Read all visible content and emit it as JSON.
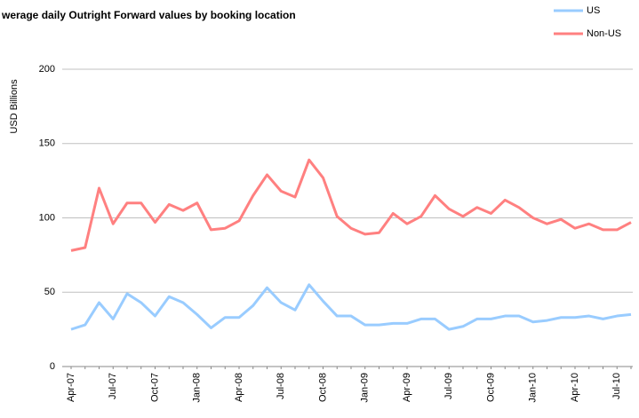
{
  "chart_data": {
    "type": "line",
    "title": "werage daily Outright Forward values by booking location",
    "y_label": "USD Billions",
    "categories": [
      "Apr-07",
      null,
      null,
      "Jul-07",
      null,
      null,
      "Oct-07",
      null,
      null,
      "Jan-08",
      null,
      null,
      "Apr-08",
      null,
      null,
      "Jul-08",
      null,
      null,
      "Oct-08",
      null,
      null,
      "Jan-09",
      null,
      null,
      "Apr-09",
      null,
      null,
      "Jul-09",
      null,
      null,
      "Oct-09",
      null,
      null,
      "Jan-10",
      null,
      null,
      "Apr-10",
      null,
      null,
      "Jul-10",
      null
    ],
    "series": [
      {
        "name": "US",
        "color": "#99ccff",
        "values": [
          25,
          28,
          43,
          32,
          49,
          43,
          34,
          47,
          43,
          35,
          26,
          33,
          33,
          41,
          53,
          43,
          38,
          55,
          44,
          34,
          34,
          28,
          28,
          29,
          29,
          32,
          32,
          25,
          27,
          32,
          32,
          34,
          34,
          30,
          31,
          33,
          33,
          34,
          32,
          34,
          35
        ]
      },
      {
        "name": "Non-US",
        "color": "#ff8080",
        "values": [
          78,
          80,
          120,
          96,
          110,
          110,
          97,
          109,
          105,
          110,
          92,
          93,
          98,
          115,
          129,
          118,
          114,
          139,
          127,
          101,
          93,
          89,
          90,
          103,
          96,
          101,
          115,
          106,
          101,
          107,
          103,
          112,
          107,
          100,
          96,
          99,
          93,
          96,
          92,
          92,
          97
        ]
      }
    ],
    "ylim": [
      0,
      200
    ],
    "yticks": [
      0,
      50,
      100,
      150,
      200
    ],
    "grid": true,
    "legend": "top-right"
  }
}
